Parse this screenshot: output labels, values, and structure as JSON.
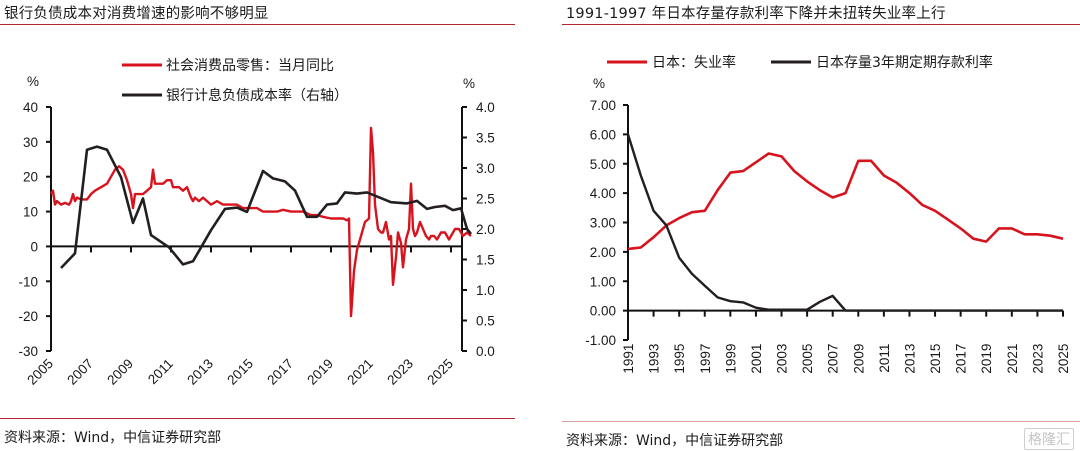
{
  "chart_data": [
    {
      "type": "line",
      "title": "银行负债成本对消费增速的影响不够明显",
      "source": "资料来源：Wind，中信证券研究部",
      "xlabel": "",
      "ylabel_left": "%",
      "ylabel_right": "%",
      "xlim": [
        2005,
        2026
      ],
      "ylim_left": [
        -30,
        40
      ],
      "ylim_right": [
        0.0,
        4.0
      ],
      "x_tick_labels": [
        "2005",
        "2007",
        "2009",
        "2011",
        "2013",
        "2015",
        "2017",
        "2019",
        "2021",
        "2023",
        "2025"
      ],
      "y_left_tick_labels": [
        "40",
        "30",
        "20",
        "10",
        "0",
        "-10",
        "-20",
        "-30"
      ],
      "y_right_tick_labels": [
        "4.0",
        "3.5",
        "3.0",
        "2.5",
        "2.0",
        "1.5",
        "1.0",
        "0.5",
        "0.0"
      ],
      "legend_position": "top-center",
      "series": [
        {
          "name": "社会消费品零售：当月同比",
          "axis": "left",
          "color": "#d7141e",
          "x": [
            2005.0,
            2005.1,
            2005.2,
            2005.3,
            2005.5,
            2005.7,
            2005.9,
            2006.0,
            2006.1,
            2006.2,
            2006.3,
            2006.5,
            2006.8,
            2007.0,
            2007.2,
            2007.5,
            2007.8,
            2008.0,
            2008.2,
            2008.4,
            2008.6,
            2008.8,
            2009.0,
            2009.1,
            2009.2,
            2009.4,
            2009.6,
            2009.8,
            2010.0,
            2010.1,
            2010.2,
            2010.4,
            2010.6,
            2010.8,
            2011.0,
            2011.1,
            2011.2,
            2011.4,
            2011.6,
            2011.8,
            2012.0,
            2012.1,
            2012.2,
            2012.4,
            2012.6,
            2012.8,
            2013.0,
            2013.3,
            2013.6,
            2014.0,
            2014.3,
            2014.6,
            2015.0,
            2015.3,
            2015.6,
            2016.0,
            2016.3,
            2016.6,
            2017.0,
            2017.3,
            2017.6,
            2018.0,
            2018.3,
            2018.6,
            2019.0,
            2019.3,
            2019.6,
            2019.8,
            2019.9,
            2020.0,
            2020.05,
            2020.15,
            2020.3,
            2020.5,
            2020.7,
            2020.9,
            2021.0,
            2021.1,
            2021.2,
            2021.35,
            2021.5,
            2021.6,
            2021.75,
            2021.9,
            2022.0,
            2022.1,
            2022.25,
            2022.35,
            2022.5,
            2022.6,
            2022.75,
            2022.9,
            2023.0,
            2023.1,
            2023.2,
            2023.3,
            2023.45,
            2023.6,
            2023.75,
            2023.9,
            2024.0,
            2024.15,
            2024.3,
            2024.5,
            2024.7,
            2024.9,
            2025.0,
            2025.2,
            2025.4,
            2025.6,
            2025.8,
            2026.0
          ],
          "y": [
            15,
            16,
            12,
            13,
            12,
            12.5,
            12,
            13,
            15,
            13,
            14,
            13.5,
            13.5,
            15,
            16,
            17,
            18,
            20,
            22,
            23,
            22,
            19,
            15,
            11,
            15,
            15,
            15,
            16,
            17,
            22,
            18,
            18,
            18,
            19,
            19,
            17,
            17,
            17,
            16,
            17,
            14,
            13,
            14,
            13,
            14,
            13,
            12,
            13,
            12,
            12,
            12,
            11,
            11,
            11,
            10,
            10,
            10,
            10.5,
            10,
            10,
            10,
            9,
            9,
            8.5,
            8,
            8,
            8,
            7.5,
            8,
            -20,
            -16,
            -7,
            -1,
            3,
            7,
            8,
            34,
            27,
            12,
            5,
            4,
            4,
            7,
            2,
            3,
            -11,
            -3,
            4,
            1,
            -6,
            2,
            5,
            18,
            5,
            3,
            4,
            7,
            5,
            3,
            2,
            3,
            3,
            2,
            4,
            4,
            2,
            3,
            5,
            5,
            3,
            4,
            3
          ]
        },
        {
          "name": "银行计息负债成本率（右轴）",
          "axis": "right",
          "color": "#231f20",
          "x": [
            2005.5,
            2006.2,
            2006.8,
            2007.3,
            2007.8,
            2008.5,
            2009.1,
            2009.6,
            2010.0,
            2010.9,
            2011.6,
            2012.1,
            2013.0,
            2013.7,
            2014.3,
            2014.8,
            2015.6,
            2016.1,
            2016.7,
            2017.2,
            2017.8,
            2018.3,
            2018.8,
            2019.3,
            2019.7,
            2020.3,
            2020.8,
            2021.4,
            2022.0,
            2022.8,
            2023.3,
            2023.8,
            2024.2,
            2024.7,
            2025.1,
            2025.5,
            2025.8,
            2026.0
          ],
          "y": [
            1.36,
            1.6,
            3.3,
            3.35,
            3.3,
            2.85,
            2.1,
            2.5,
            1.9,
            1.7,
            1.42,
            1.47,
            1.98,
            2.33,
            2.35,
            2.28,
            2.95,
            2.83,
            2.78,
            2.63,
            2.2,
            2.2,
            2.4,
            2.42,
            2.6,
            2.58,
            2.6,
            2.52,
            2.44,
            2.42,
            2.46,
            2.33,
            2.36,
            2.38,
            2.31,
            2.34,
            2.0,
            1.92
          ]
        }
      ]
    },
    {
      "type": "line",
      "title": "1991-1997 年日本存量存款利率下降并未扭转失业率上行",
      "source": "资料来源：Wind，中信证券研究部",
      "xlabel": "",
      "ylabel": "%",
      "xlim": [
        1991,
        2025
      ],
      "ylim": [
        -1.0,
        7.0
      ],
      "x_tick_labels": [
        "1991",
        "1993",
        "1995",
        "1997",
        "1999",
        "2001",
        "2003",
        "2005",
        "2007",
        "2009",
        "2011",
        "2013",
        "2015",
        "2017",
        "2019",
        "2021",
        "2023",
        "2025"
      ],
      "y_tick_labels": [
        "7.00",
        "6.00",
        "5.00",
        "4.00",
        "3.00",
        "2.00",
        "1.00",
        "0.00",
        "-1.00"
      ],
      "legend_position": "top",
      "series": [
        {
          "name": "日本：失业率",
          "color": "#d7141e",
          "x": [
            1991,
            1992,
            1993,
            1994,
            1995,
            1996,
            1997,
            1998,
            1999,
            2000,
            2001,
            2002,
            2003,
            2004,
            2005,
            2006,
            2007,
            2008,
            2009,
            2010,
            2011,
            2012,
            2013,
            2014,
            2015,
            2016,
            2017,
            2018,
            2019,
            2020,
            2021,
            2022,
            2023,
            2024,
            2025
          ],
          "y": [
            2.1,
            2.15,
            2.5,
            2.9,
            3.15,
            3.35,
            3.4,
            4.1,
            4.7,
            4.75,
            5.05,
            5.35,
            5.25,
            4.75,
            4.4,
            4.1,
            3.85,
            4.0,
            5.1,
            5.1,
            4.6,
            4.35,
            4.0,
            3.6,
            3.4,
            3.1,
            2.8,
            2.45,
            2.35,
            2.8,
            2.8,
            2.6,
            2.6,
            2.55,
            2.45
          ]
        },
        {
          "name": "日本存量3年期定期存款利率",
          "color": "#231f20",
          "x": [
            1991,
            1992,
            1993,
            1994,
            1995,
            1996,
            1997,
            1998,
            1999,
            2000,
            2001,
            2002,
            2003,
            2004,
            2005,
            2006,
            2007,
            2008,
            2009,
            2010,
            2011,
            2012,
            2013,
            2014,
            2015,
            2016,
            2017,
            2018,
            2019,
            2020,
            2021,
            2022,
            2023,
            2024,
            2025
          ],
          "y": [
            6.0,
            4.6,
            3.4,
            2.9,
            1.8,
            1.25,
            0.85,
            0.45,
            0.32,
            0.28,
            0.1,
            0.03,
            0.03,
            0.03,
            0.03,
            0.3,
            0.5,
            0.0,
            0.0,
            0.0,
            0.0,
            0.0,
            0.0,
            0.0,
            0.0,
            0.0,
            0.0,
            0.0,
            0.0,
            0.0,
            0.0,
            0.0,
            0.0,
            0.0,
            0.0
          ]
        }
      ]
    }
  ],
  "watermark": "格隆汇"
}
